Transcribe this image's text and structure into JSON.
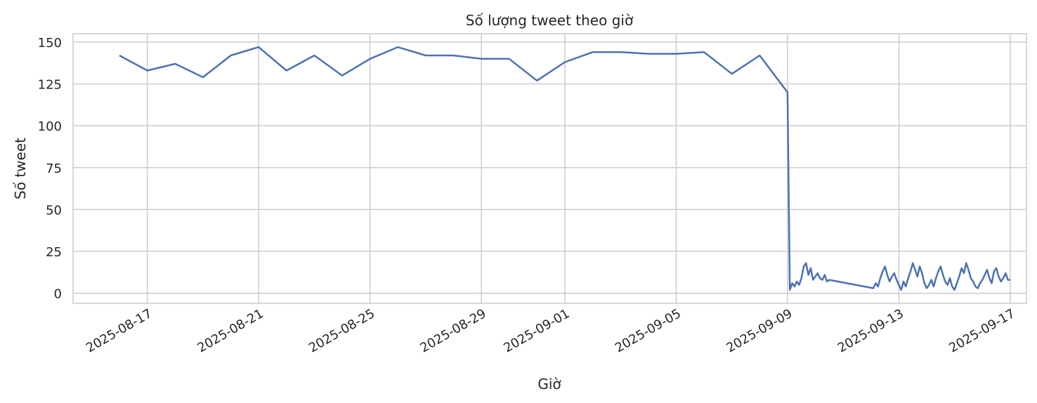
{
  "chart_data": {
    "type": "line",
    "title": "Số lượng tweet theo giờ",
    "xlabel": "Giờ",
    "ylabel": "Số tweet",
    "x_ticks": [
      "2025-08-17",
      "2025-08-21",
      "2025-08-25",
      "2025-08-29",
      "2025-09-01",
      "2025-09-05",
      "2025-09-09",
      "2025-09-13",
      "2025-09-17"
    ],
    "y_ticks": [
      0,
      25,
      50,
      75,
      100,
      125,
      150
    ],
    "xlim": [
      "2025-08-14T08:00",
      "2025-09-17T14:00"
    ],
    "ylim": [
      -6,
      155
    ],
    "grid": true,
    "line_color": "#4c72b0",
    "series": [
      {
        "x": [
          "2025-08-16",
          "2025-08-17",
          "2025-08-18",
          "2025-08-19",
          "2025-08-20",
          "2025-08-21",
          "2025-08-22",
          "2025-08-23",
          "2025-08-24",
          "2025-08-25",
          "2025-08-26",
          "2025-08-27",
          "2025-08-28",
          "2025-08-29",
          "2025-08-30",
          "2025-08-31",
          "2025-09-01",
          "2025-09-02",
          "2025-09-03",
          "2025-09-04",
          "2025-09-05",
          "2025-09-06",
          "2025-09-07",
          "2025-09-08",
          "2025-09-09",
          "2025-09-09T02:00",
          "2025-09-09T04:00",
          "2025-09-09T06:00",
          "2025-09-09T08:00",
          "2025-09-09T10:00",
          "2025-09-09T12:00",
          "2025-09-09T14:00",
          "2025-09-09T16:00",
          "2025-09-09T18:00",
          "2025-09-09T20:00",
          "2025-09-09T22:00",
          "2025-09-10T00:00",
          "2025-09-10T02:00",
          "2025-09-10T04:00",
          "2025-09-10T06:00",
          "2025-09-10T08:00",
          "2025-09-10T10:00",
          "2025-09-10T12:00",
          "2025-09-12T02:00",
          "2025-09-12T04:00",
          "2025-09-12T06:00",
          "2025-09-12T08:00",
          "2025-09-12T10:00",
          "2025-09-12T12:00",
          "2025-09-12T14:00",
          "2025-09-12T16:00",
          "2025-09-12T18:00",
          "2025-09-12T20:00",
          "2025-09-12T22:00",
          "2025-09-13T00:00",
          "2025-09-13T02:00",
          "2025-09-13T04:00",
          "2025-09-13T06:00",
          "2025-09-13T08:00",
          "2025-09-13T10:00",
          "2025-09-13T12:00",
          "2025-09-13T14:00",
          "2025-09-13T16:00",
          "2025-09-13T18:00",
          "2025-09-13T20:00",
          "2025-09-13T22:00",
          "2025-09-14T00:00",
          "2025-09-14T02:00",
          "2025-09-14T04:00",
          "2025-09-14T06:00",
          "2025-09-14T08:00",
          "2025-09-14T10:00",
          "2025-09-14T12:00",
          "2025-09-14T14:00",
          "2025-09-14T16:00",
          "2025-09-14T18:00",
          "2025-09-14T20:00",
          "2025-09-14T22:00",
          "2025-09-15T00:00",
          "2025-09-15T02:00",
          "2025-09-15T04:00",
          "2025-09-15T06:00",
          "2025-09-15T08:00",
          "2025-09-15T10:00",
          "2025-09-15T12:00",
          "2025-09-15T14:00",
          "2025-09-15T16:00",
          "2025-09-15T18:00",
          "2025-09-15T20:00",
          "2025-09-15T22:00",
          "2025-09-16T00:00",
          "2025-09-16T02:00",
          "2025-09-16T04:00",
          "2025-09-16T06:00",
          "2025-09-16T08:00",
          "2025-09-16T10:00",
          "2025-09-16T12:00",
          "2025-09-16T14:00",
          "2025-09-16T16:00",
          "2025-09-16T18:00",
          "2025-09-16T20:00",
          "2025-09-16T22:00",
          "2025-09-17T00:00"
        ],
        "y": [
          142,
          133,
          137,
          129,
          142,
          147,
          133,
          142,
          130,
          140,
          147,
          142,
          142,
          140,
          140,
          127,
          138,
          144,
          144,
          143,
          143,
          144,
          131,
          142,
          120,
          2,
          6,
          4,
          7,
          5,
          9,
          16,
          18,
          11,
          15,
          8,
          10,
          12,
          9,
          8,
          11,
          7,
          8,
          3,
          6,
          4,
          9,
          13,
          16,
          11,
          7,
          10,
          12,
          8,
          5,
          2,
          7,
          4,
          9,
          13,
          18,
          14,
          10,
          16,
          12,
          6,
          3,
          5,
          8,
          4,
          9,
          13,
          16,
          11,
          7,
          5,
          9,
          4,
          2,
          6,
          10,
          15,
          12,
          18,
          14,
          9,
          7,
          4,
          3,
          6,
          8,
          11,
          14,
          9,
          6,
          13,
          15,
          10,
          7,
          9,
          12,
          8,
          8
        ]
      }
    ]
  }
}
